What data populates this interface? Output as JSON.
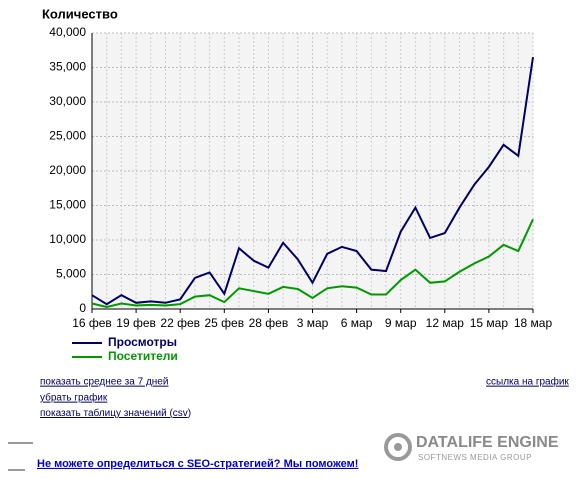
{
  "chart_data": {
    "type": "line",
    "title": "Количество",
    "categories": [
      "16 фев",
      null,
      null,
      "19 фев",
      null,
      null,
      "22 фев",
      null,
      null,
      "25 фев",
      null,
      null,
      "28 фев",
      null,
      null,
      "3 мар",
      null,
      null,
      "6 мар",
      null,
      null,
      "9 мар",
      null,
      null,
      "12 мар",
      null,
      null,
      "15 мар",
      null,
      null,
      "18 мар"
    ],
    "series": [
      {
        "name": "Просмотры",
        "color": "#000066",
        "values": [
          2000,
          700,
          2000,
          900,
          1100,
          900,
          1400,
          4500,
          5300,
          2200,
          8800,
          7000,
          6000,
          9600,
          7200,
          3800,
          8000,
          9000,
          8400,
          5700,
          5500,
          11200,
          14700,
          10300,
          11000,
          14700,
          18000,
          20600,
          23800,
          22200,
          36500
        ]
      },
      {
        "name": "Посетители",
        "color": "#009900",
        "values": [
          800,
          300,
          800,
          500,
          600,
          500,
          700,
          1800,
          2000,
          1000,
          3000,
          2600,
          2200,
          3200,
          2900,
          1600,
          3000,
          3300,
          3100,
          2100,
          2100,
          4200,
          5700,
          3800,
          4000,
          5400,
          6600,
          7600,
          9300,
          8400,
          13000
        ]
      }
    ],
    "ylim": [
      0,
      40000
    ],
    "yticks": [
      0,
      {
        "value": 5000,
        "label": "5,000"
      },
      {
        "value": 10000,
        "label": "10,000"
      },
      {
        "value": 15000,
        "label": "15,000"
      },
      {
        "value": 20000,
        "label": "20,000"
      },
      {
        "value": 25000,
        "label": "25,000"
      },
      {
        "value": 30000,
        "label": "30,000"
      },
      {
        "value": 35000,
        "label": "35,000"
      },
      {
        "value": 40000,
        "label": "40,000"
      }
    ],
    "grid": true,
    "legend": "bottom-left"
  },
  "links": {
    "average": "показать среднее за 7 дней",
    "remove": "убрать график",
    "table_prefix": "показать таблицу значений (",
    "csv": "csv",
    "table_suffix": ")",
    "chart_link": "ссылка на график"
  },
  "promo": "Не можете определиться с SEO-стратегией? Мы поможем!",
  "logo": {
    "title": "DATALIFE ENGINE",
    "subtitle": "SOFTNEWS MEDIA GROUP"
  }
}
